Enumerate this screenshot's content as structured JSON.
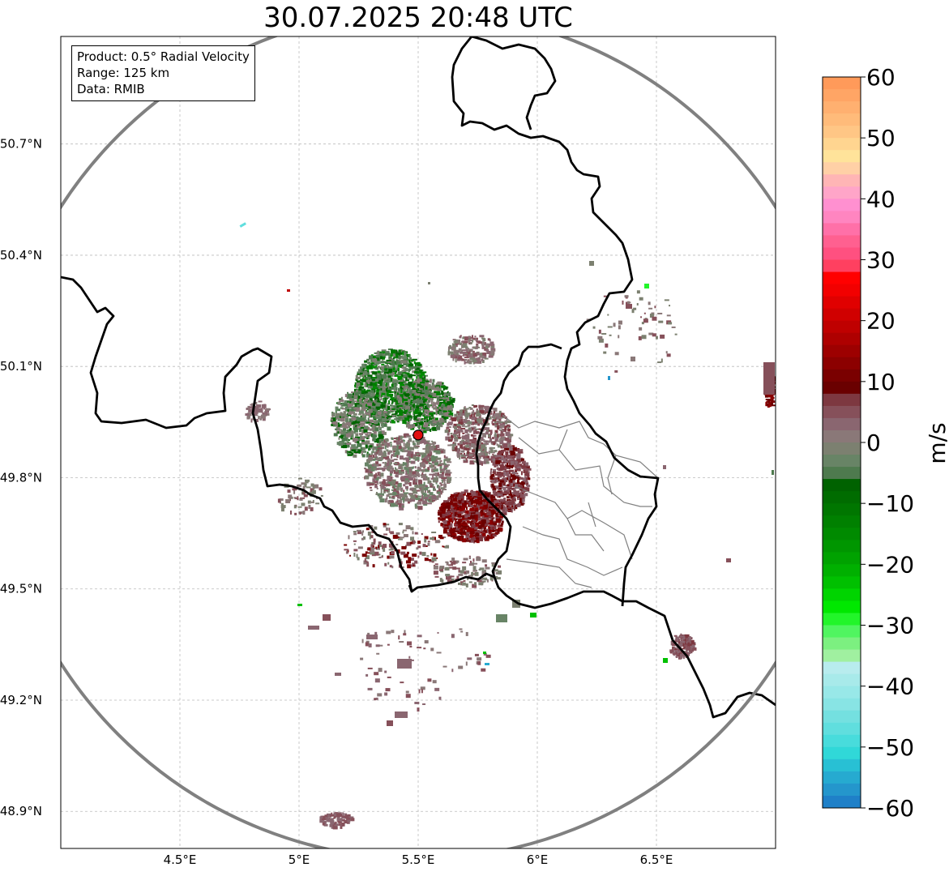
{
  "title": "30.07.2025 20:48 UTC",
  "info": {
    "product": "Product: 0.5° Radial Velocity",
    "range": "Range: 125 km",
    "source": "Data: RMIB"
  },
  "axes": {
    "lon_ticks": [
      {
        "value": 4.5,
        "label": "4.5°E"
      },
      {
        "value": 5.0,
        "label": "5°E"
      },
      {
        "value": 5.5,
        "label": "5.5°E"
      },
      {
        "value": 6.0,
        "label": "6°E"
      },
      {
        "value": 6.5,
        "label": "6.5°E"
      }
    ],
    "lat_ticks": [
      {
        "value": 50.7,
        "label": "50.7°N"
      },
      {
        "value": 50.4,
        "label": "50.4°N"
      },
      {
        "value": 50.1,
        "label": "50.1°N"
      },
      {
        "value": 49.8,
        "label": "49.8°N"
      },
      {
        "value": 49.5,
        "label": "49.5°N"
      },
      {
        "value": 49.2,
        "label": "49.2°N"
      },
      {
        "value": 48.9,
        "label": "48.9°N"
      }
    ],
    "lon_range": [
      4.0,
      7.0
    ],
    "lat_range": [
      48.8,
      50.99
    ]
  },
  "radar": {
    "lon": 5.5,
    "lat": 49.915,
    "range_km": 125,
    "marker_color": "#e01010"
  },
  "colorbar": {
    "label": "m/s",
    "min": -60,
    "max": 60,
    "ticks": [
      "60",
      "50",
      "40",
      "30",
      "20",
      "10",
      "0",
      "−10",
      "−20",
      "−30",
      "−40",
      "−50",
      "−60"
    ],
    "tick_values": [
      60,
      50,
      40,
      30,
      20,
      10,
      0,
      -10,
      -20,
      -30,
      -40,
      -50,
      -60
    ],
    "bands": [
      {
        "from": 58,
        "to": 60,
        "color": "#ff9a5a"
      },
      {
        "from": 56,
        "to": 58,
        "color": "#ffa565"
      },
      {
        "from": 54,
        "to": 56,
        "color": "#ffb070"
      },
      {
        "from": 52,
        "to": 54,
        "color": "#ffbb7a"
      },
      {
        "from": 50,
        "to": 52,
        "color": "#ffc685"
      },
      {
        "from": 48,
        "to": 50,
        "color": "#ffd590"
      },
      {
        "from": 46,
        "to": 48,
        "color": "#ffe39a"
      },
      {
        "from": 44,
        "to": 46,
        "color": "#ffd0a6"
      },
      {
        "from": 42,
        "to": 44,
        "color": "#ffb5b5"
      },
      {
        "from": 40,
        "to": 42,
        "color": "#ffa5c8"
      },
      {
        "from": 38,
        "to": 40,
        "color": "#ff90d0"
      },
      {
        "from": 36,
        "to": 38,
        "color": "#ff85c0"
      },
      {
        "from": 34,
        "to": 36,
        "color": "#ff70a8"
      },
      {
        "from": 32,
        "to": 34,
        "color": "#ff6090"
      },
      {
        "from": 30,
        "to": 32,
        "color": "#ff5080"
      },
      {
        "from": 28,
        "to": 30,
        "color": "#ff4060"
      },
      {
        "from": 26,
        "to": 28,
        "color": "#ff0000"
      },
      {
        "from": 24,
        "to": 26,
        "color": "#f20000"
      },
      {
        "from": 22,
        "to": 24,
        "color": "#e00000"
      },
      {
        "from": 20,
        "to": 22,
        "color": "#d00000"
      },
      {
        "from": 18,
        "to": 20,
        "color": "#bf0000"
      },
      {
        "from": 16,
        "to": 18,
        "color": "#ae0000"
      },
      {
        "from": 14,
        "to": 16,
        "color": "#9d0000"
      },
      {
        "from": 12,
        "to": 14,
        "color": "#8c0000"
      },
      {
        "from": 10,
        "to": 12,
        "color": "#7a0000"
      },
      {
        "from": 8,
        "to": 10,
        "color": "#6a0000"
      },
      {
        "from": 6,
        "to": 8,
        "color": "#7d3840"
      },
      {
        "from": 4,
        "to": 6,
        "color": "#86505a"
      },
      {
        "from": 2,
        "to": 4,
        "color": "#8a6670"
      },
      {
        "from": 0,
        "to": 2,
        "color": "#8a7878"
      },
      {
        "from": -2,
        "to": 0,
        "color": "#7c8070"
      },
      {
        "from": -4,
        "to": -2,
        "color": "#688466"
      },
      {
        "from": -6,
        "to": -4,
        "color": "#4e7a4e"
      },
      {
        "from": -8,
        "to": -6,
        "color": "#006200"
      },
      {
        "from": -10,
        "to": -8,
        "color": "#006c00"
      },
      {
        "from": -12,
        "to": -10,
        "color": "#007600"
      },
      {
        "from": -14,
        "to": -12,
        "color": "#008000"
      },
      {
        "from": -16,
        "to": -14,
        "color": "#008a00"
      },
      {
        "from": -18,
        "to": -16,
        "color": "#009600"
      },
      {
        "from": -20,
        "to": -18,
        "color": "#00a200"
      },
      {
        "from": -22,
        "to": -20,
        "color": "#00b000"
      },
      {
        "from": -24,
        "to": -22,
        "color": "#00c000"
      },
      {
        "from": -26,
        "to": -24,
        "color": "#00d400"
      },
      {
        "from": -28,
        "to": -26,
        "color": "#00e800"
      },
      {
        "from": -30,
        "to": -28,
        "color": "#22f52a"
      },
      {
        "from": -32,
        "to": -30,
        "color": "#50f560"
      },
      {
        "from": -34,
        "to": -32,
        "color": "#7cf080"
      },
      {
        "from": -36,
        "to": -34,
        "color": "#a0f0a0"
      },
      {
        "from": -38,
        "to": -36,
        "color": "#b8ecee"
      },
      {
        "from": -40,
        "to": -38,
        "color": "#a8eaea"
      },
      {
        "from": -42,
        "to": -40,
        "color": "#98e8e8"
      },
      {
        "from": -44,
        "to": -42,
        "color": "#88e4e4"
      },
      {
        "from": -46,
        "to": -44,
        "color": "#74e0e0"
      },
      {
        "from": -48,
        "to": -46,
        "color": "#60dede"
      },
      {
        "from": -50,
        "to": -48,
        "color": "#48dcdc"
      },
      {
        "from": -52,
        "to": -50,
        "color": "#30d8d8"
      },
      {
        "from": -54,
        "to": -52,
        "color": "#28c0d4"
      },
      {
        "from": -56,
        "to": -54,
        "color": "#26aad0"
      },
      {
        "from": -58,
        "to": -56,
        "color": "#2496cc"
      },
      {
        "from": -60,
        "to": -58,
        "color": "#1f80c8"
      }
    ]
  },
  "clusters": [
    {
      "lon": 5.38,
      "lat": 50.05,
      "rlon": 0.15,
      "rlat": 0.1,
      "n": 900,
      "palette": [
        "#006400",
        "#007a00",
        "#008c00",
        "#4e7a4e",
        "#688466",
        "#7c8070"
      ]
    },
    {
      "lon": 5.52,
      "lat": 50.0,
      "rlon": 0.12,
      "rlat": 0.07,
      "n": 500,
      "palette": [
        "#006400",
        "#008000",
        "#5a7a5a",
        "#7c8070",
        "#8a7878"
      ]
    },
    {
      "lon": 5.25,
      "lat": 49.95,
      "rlon": 0.12,
      "rlat": 0.09,
      "n": 500,
      "palette": [
        "#688466",
        "#7c8070",
        "#4e7a4e",
        "#006400",
        "#8a7878"
      ]
    },
    {
      "lon": 5.45,
      "lat": 49.82,
      "rlon": 0.18,
      "rlat": 0.1,
      "n": 700,
      "palette": [
        "#8a7878",
        "#7c8070",
        "#86505a",
        "#688466",
        "#8a6670"
      ]
    },
    {
      "lon": 5.75,
      "lat": 49.92,
      "rlon": 0.14,
      "rlat": 0.08,
      "n": 500,
      "palette": [
        "#8a6670",
        "#86505a",
        "#8a7878",
        "#7d3840",
        "#7c8070"
      ]
    },
    {
      "lon": 5.72,
      "lat": 49.7,
      "rlon": 0.14,
      "rlat": 0.07,
      "n": 800,
      "palette": [
        "#6a0000",
        "#7a0000",
        "#8c0000",
        "#7d3840",
        "#86505a"
      ]
    },
    {
      "lon": 5.88,
      "lat": 49.8,
      "rlon": 0.08,
      "rlat": 0.09,
      "n": 400,
      "palette": [
        "#7d3840",
        "#86505a",
        "#6a0000",
        "#8a6670"
      ]
    },
    {
      "lon": 5.72,
      "lat": 50.15,
      "rlon": 0.1,
      "rlat": 0.04,
      "n": 180,
      "palette": [
        "#8a7878",
        "#86505a",
        "#8a6670",
        "#7c8070"
      ]
    },
    {
      "lon": 5.4,
      "lat": 49.62,
      "rlon": 0.22,
      "rlat": 0.06,
      "n": 160,
      "palette": [
        "#8a7878",
        "#86505a",
        "#7c8070",
        "#7a0000"
      ]
    },
    {
      "lon": 5.7,
      "lat": 49.55,
      "rlon": 0.15,
      "rlat": 0.04,
      "n": 110,
      "palette": [
        "#8a7878",
        "#7c8070",
        "#86505a"
      ]
    },
    {
      "lon": 6.6,
      "lat": 49.35,
      "rlon": 0.05,
      "rlat": 0.03,
      "n": 140,
      "palette": [
        "#86505a",
        "#7d3840",
        "#8a6670"
      ]
    },
    {
      "lon": 6.97,
      "lat": 50.04,
      "rlon": 0.02,
      "rlat": 0.05,
      "n": 70,
      "palette": [
        "#7a0000",
        "#8c0000",
        "#6a0000"
      ]
    },
    {
      "lon": 5.15,
      "lat": 48.88,
      "rlon": 0.07,
      "rlat": 0.02,
      "n": 80,
      "palette": [
        "#8a6670",
        "#86505a"
      ]
    },
    {
      "lon": 4.82,
      "lat": 49.98,
      "rlon": 0.05,
      "rlat": 0.03,
      "n": 50,
      "palette": [
        "#8a7878",
        "#8a6670"
      ]
    },
    {
      "lon": 5.0,
      "lat": 49.75,
      "rlon": 0.1,
      "rlat": 0.05,
      "n": 60,
      "palette": [
        "#8a7878",
        "#7c8070",
        "#86505a"
      ]
    },
    {
      "lon": 5.5,
      "lat": 49.3,
      "rlon": 0.3,
      "rlat": 0.12,
      "n": 70,
      "palette": [
        "#8a6670",
        "#86505a",
        "#8a7878"
      ]
    },
    {
      "lon": 6.4,
      "lat": 50.2,
      "rlon": 0.2,
      "rlat": 0.12,
      "n": 60,
      "palette": [
        "#8a7878",
        "#7c8070",
        "#86505a"
      ]
    }
  ]
}
